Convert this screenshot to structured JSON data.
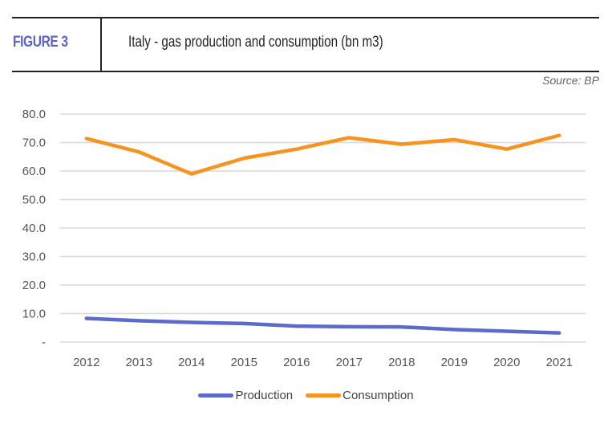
{
  "header": {
    "figure_label": "FIGURE 3",
    "title": "Italy - gas production and consumption (bn m3)",
    "source": "Source: BP"
  },
  "chart_data": {
    "type": "line",
    "title": "Italy - gas production and consumption (bn m3)",
    "xlabel": "",
    "ylabel": "",
    "categories": [
      "2012",
      "2013",
      "2014",
      "2015",
      "2016",
      "2017",
      "2018",
      "2019",
      "2020",
      "2021"
    ],
    "series": [
      {
        "name": "Production",
        "color": "#5b6bc9",
        "values": [
          8.3,
          7.5,
          6.9,
          6.5,
          5.6,
          5.4,
          5.3,
          4.4,
          3.8,
          3.2
        ]
      },
      {
        "name": "Consumption",
        "color": "#f7931e",
        "values": [
          71.4,
          66.7,
          59.0,
          64.5,
          67.7,
          71.7,
          69.4,
          71.0,
          67.7,
          72.5
        ]
      }
    ],
    "ylim": [
      0,
      80
    ],
    "yticks": [
      0,
      10,
      20,
      30,
      40,
      50,
      60,
      70,
      80
    ],
    "ytick_labels": [
      "-",
      "10.0",
      "20.0",
      "30.0",
      "40.0",
      "50.0",
      "60.0",
      "70.0",
      "80.0"
    ],
    "grid": true,
    "legend": "bottom"
  }
}
